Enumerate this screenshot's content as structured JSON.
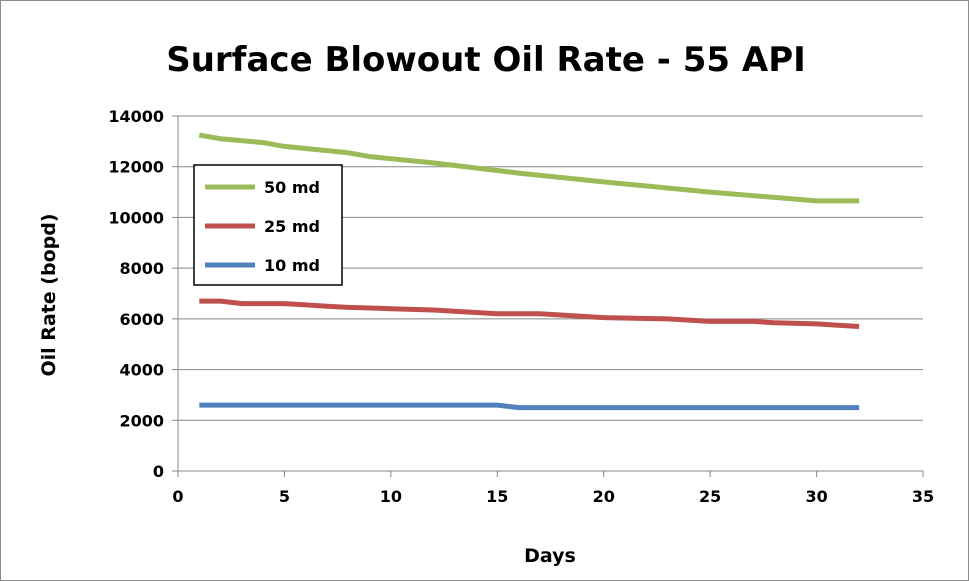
{
  "chart_data": {
    "type": "line",
    "title": "Surface Blowout Oil Rate - 55 API",
    "xlabel": "Days",
    "ylabel": "Oil Rate (bopd)",
    "xlim": [
      0,
      35
    ],
    "ylim": [
      0,
      14000
    ],
    "xticks": [
      "0",
      "5",
      "10",
      "15",
      "20",
      "25",
      "30",
      "35"
    ],
    "yticks": [
      "0",
      "2000",
      "4000",
      "6000",
      "8000",
      "10000",
      "12000",
      "14000"
    ],
    "grid": true,
    "legend_position": "top-left",
    "series": [
      {
        "name": "50 md",
        "color": "#9bbb59",
        "x": [
          1,
          2,
          4,
          5,
          8,
          9,
          12,
          14,
          15,
          16,
          20,
          25,
          30,
          31,
          32
        ],
        "y": [
          13250,
          13100,
          12950,
          12800,
          12550,
          12400,
          12150,
          11950,
          11850,
          11750,
          11400,
          11000,
          10650,
          10650,
          10650
        ]
      },
      {
        "name": "25 md",
        "color": "#c0504d",
        "x": [
          1,
          2,
          3,
          5,
          6,
          7,
          8,
          10,
          12,
          13,
          15,
          17,
          20,
          23,
          25,
          27,
          28,
          30,
          31,
          32
        ],
        "y": [
          6700,
          6700,
          6600,
          6600,
          6550,
          6500,
          6450,
          6400,
          6350,
          6300,
          6200,
          6200,
          6050,
          6000,
          5900,
          5900,
          5850,
          5800,
          5750,
          5700
        ]
      },
      {
        "name": "10 md",
        "color": "#4f81bd",
        "x": [
          1,
          5,
          10,
          15,
          16,
          20,
          25,
          30,
          32
        ],
        "y": [
          2600,
          2600,
          2600,
          2600,
          2500,
          2500,
          2500,
          2500,
          2500
        ]
      }
    ]
  }
}
